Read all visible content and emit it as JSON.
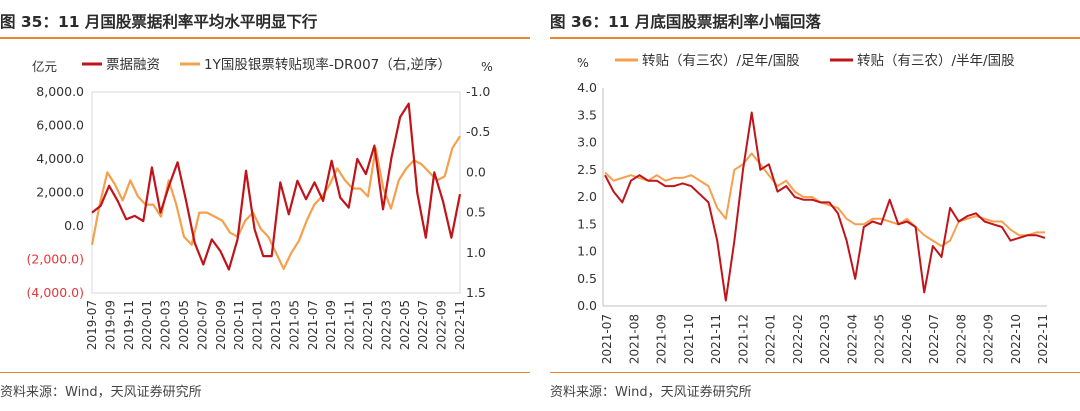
{
  "left": {
    "title": "图 35：11 月国股票据利率平均水平明显下行",
    "source": "资料来源：Wind，天风证券研究所"
  },
  "right": {
    "title": "图 36：11 月底国股票据利率小幅回落",
    "source": "资料来源：Wind，天风证券研究所"
  },
  "colors": {
    "rule": "#e8862a",
    "dark_red": "#c0141b",
    "orange": "#f5a04c",
    "neg_label": "#e8363b"
  },
  "chart_data": [
    {
      "type": "line",
      "left_unit": "亿元",
      "right_unit": "%",
      "left_axis": {
        "min": -4000,
        "max": 8000,
        "ticks": [
          8000,
          6000,
          4000,
          2000,
          0,
          -2000,
          -4000
        ],
        "tick_labels": [
          "8,000.0",
          "6,000.0",
          "4,000.0",
          "2,000.0",
          "0.0",
          "(2,000.0)",
          "(4,000.0)"
        ]
      },
      "right_axis": {
        "inverted": true,
        "min": -1.0,
        "max": 1.5,
        "ticks": [
          -1.0,
          -0.5,
          0.0,
          0.5,
          1.0,
          1.5
        ],
        "tick_labels": [
          "-1.0",
          "-0.5",
          "0.0",
          "0.5",
          "1.0",
          "1.5"
        ]
      },
      "x_labels": [
        "2019-07",
        "2019-09",
        "2019-11",
        "2020-01",
        "2020-03",
        "2020-05",
        "2020-07",
        "2020-09",
        "2020-11",
        "2021-01",
        "2021-03",
        "2021-05",
        "2021-07",
        "2021-09",
        "2021-11",
        "2022-01",
        "2022-03",
        "2022-05",
        "2022-07",
        "2022-09",
        "2022-11"
      ],
      "series": [
        {
          "name": "票据融资",
          "axis": "left",
          "color": "#c0141b",
          "values": [
            800,
            1200,
            2400,
            1500,
            400,
            600,
            300,
            3500,
            800,
            2400,
            3800,
            1500,
            -1000,
            -2300,
            -800,
            -1500,
            -2600,
            -800,
            3300,
            -200,
            -1800,
            -1800,
            2600,
            700,
            2700,
            1600,
            2600,
            1500,
            3900,
            1700,
            1100,
            4000,
            3100,
            4800,
            1000,
            4100,
            6500,
            7300,
            2000,
            -700,
            3200,
            1500,
            -700,
            1900
          ]
        },
        {
          "name": "1Y国股银票转贴现率-DR007（右,逆序）",
          "axis": "right",
          "color": "#f5a04c",
          "values": [
            0.9,
            0.4,
            0.0,
            0.15,
            0.35,
            0.1,
            0.3,
            0.4,
            0.4,
            0.55,
            0.1,
            0.4,
            0.8,
            0.9,
            0.5,
            0.5,
            0.55,
            0.6,
            0.75,
            0.8,
            0.6,
            0.5,
            0.7,
            0.8,
            1.0,
            1.2,
            1.0,
            0.85,
            0.6,
            0.4,
            0.3,
            0.15,
            -0.05,
            0.1,
            0.2,
            0.2,
            0.3,
            -0.3,
            0.2,
            0.45,
            0.1,
            -0.05,
            -0.15,
            -0.1,
            0.0,
            0.1,
            0.05,
            -0.3,
            -0.45
          ]
        }
      ]
    },
    {
      "type": "line",
      "y_unit": "%",
      "y_axis": {
        "min": 0.0,
        "max": 4.0,
        "ticks": [
          0.0,
          0.5,
          1.0,
          1.5,
          2.0,
          2.5,
          3.0,
          3.5,
          4.0
        ],
        "tick_labels": [
          "0.0",
          "0.5",
          "1.0",
          "1.5",
          "2.0",
          "2.5",
          "3.0",
          "3.5",
          "4.0"
        ]
      },
      "x_labels": [
        "2021-07",
        "2021-08",
        "2021-09",
        "2021-10",
        "2021-11",
        "2021-12",
        "2022-01",
        "2022-02",
        "2022-03",
        "2022-04",
        "2022-05",
        "2022-06",
        "2022-07",
        "2022-08",
        "2022-09",
        "2022-10",
        "2022-11"
      ],
      "series": [
        {
          "name": "转贴（有三农）/足年/国股",
          "color": "#f5a04c",
          "values": [
            2.45,
            2.3,
            2.35,
            2.4,
            2.35,
            2.3,
            2.4,
            2.3,
            2.35,
            2.35,
            2.4,
            2.3,
            2.2,
            1.8,
            1.6,
            2.5,
            2.6,
            2.8,
            2.6,
            2.4,
            2.2,
            2.3,
            2.1,
            2.0,
            2.0,
            1.9,
            1.85,
            1.8,
            1.6,
            1.5,
            1.5,
            1.6,
            1.6,
            1.55,
            1.5,
            1.6,
            1.45,
            1.3,
            1.2,
            1.1,
            1.2,
            1.55,
            1.6,
            1.65,
            1.6,
            1.55,
            1.55,
            1.4,
            1.3,
            1.3,
            1.35,
            1.35
          ]
        },
        {
          "name": "转贴（有三农）/半年/国股",
          "color": "#c0141b",
          "values": [
            2.4,
            2.1,
            1.9,
            2.3,
            2.4,
            2.3,
            2.3,
            2.2,
            2.2,
            2.25,
            2.2,
            2.05,
            1.9,
            1.2,
            0.1,
            1.2,
            2.5,
            3.55,
            2.5,
            2.6,
            2.1,
            2.2,
            2.0,
            1.95,
            1.95,
            1.9,
            1.9,
            1.7,
            1.2,
            0.5,
            1.45,
            1.55,
            1.5,
            1.95,
            1.5,
            1.55,
            1.45,
            0.25,
            1.1,
            0.9,
            1.8,
            1.55,
            1.65,
            1.7,
            1.55,
            1.5,
            1.45,
            1.2,
            1.25,
            1.3,
            1.3,
            1.25
          ]
        }
      ]
    }
  ]
}
